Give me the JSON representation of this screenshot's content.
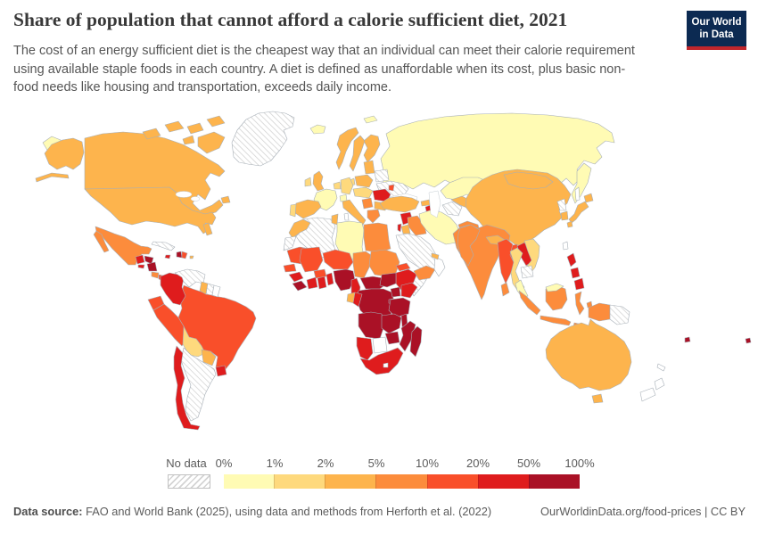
{
  "header": {
    "title": "Share of population that cannot afford a calorie sufficient diet, 2021",
    "subtitle": "The cost of an energy sufficient diet is the cheapest way that an individual can meet their calorie requirement using available staple foods in each country. A diet is defined as unaffordable when its cost, plus basic non-food needs like housing and transportation, exceeds daily income.",
    "logo": {
      "line1": "Our World",
      "line2": "in Data",
      "bg_color": "#0c2a52",
      "accent_color": "#c0262c"
    }
  },
  "footer": {
    "source_label": "Data source:",
    "source_text": " FAO and World Bank (2025), using data and methods from Herforth et al. (2022)",
    "right_text": "OurWorldinData.org/food-prices | CC BY"
  },
  "chart_data": {
    "type": "choropleth-map",
    "title": "Share of population that cannot afford a calorie sufficient diet",
    "year": "2021",
    "unit": "% of population",
    "legend": {
      "no_data_label": "No data",
      "tick_labels": [
        "0%",
        "1%",
        "2%",
        "5%",
        "10%",
        "20%",
        "50%",
        "100%"
      ],
      "bin_ranges": [
        "0-1%",
        "1-2%",
        "2-5%",
        "5-10%",
        "10-20%",
        "20-50%",
        "50-100%"
      ],
      "colors": [
        "#FFFBB4",
        "#FED97D",
        "#FDB44D",
        "#FC8C3C",
        "#F94F2A",
        "#DF1C1D",
        "#AA1126"
      ],
      "no_data_pattern": "diagonal-hatch"
    },
    "region_bins": {
      "russia": 0,
      "svalbard": 0,
      "iceland": 0,
      "kazakhstan": 0,
      "iran": 0,
      "libya": 0,
      "france": 0,
      "switzerland": 0,
      "malaysia": 0,
      "thailand": 1,
      "vietnam": 1,
      "bolivia": 1,
      "ireland": 1,
      "portugal": 1,
      "germany": 1,
      "benelux": 1,
      "denmark": 1,
      "central-europe": 1,
      "canada": 2,
      "usa": 2,
      "norway": 2,
      "sweden": 2,
      "finland": 2,
      "uk": 2,
      "spain": 2,
      "italy": 2,
      "poland": 2,
      "baltics": 2,
      "bulgaria": 2,
      "turkey": 2,
      "georgia": 2,
      "azerbaijan": 2,
      "uzbekistan": 2,
      "kyrgyzstan": 2,
      "jordan": 2,
      "uae": 2,
      "morocco": 2,
      "tunisia": 2,
      "china": 2,
      "mongolia": 2,
      "japan": 2,
      "south-korea": 2,
      "australia": 2,
      "guyana": 2,
      "paraguay": 2,
      "gabon": 2,
      "puerto-rico": 2,
      "nepal": 2,
      "mexico": 3,
      "costa-rica": 3,
      "egypt": 3,
      "chad": 3,
      "sudan": 3,
      "yemen": 3,
      "iraq": 3,
      "afghanistan": 3,
      "pakistan": 3,
      "india": 3,
      "sri-lanka": 3,
      "greece": 3,
      "balkans": 3,
      "indonesia": 3,
      "papua-indonesia": 3,
      "peru": 4,
      "ecuador": 4,
      "brazil": 4,
      "panama": 4,
      "dominican-republic": 4,
      "moldova": 4,
      "bangladesh": 4,
      "myanmar": 4,
      "mauritania": 4,
      "mali": 4,
      "niger": 4,
      "burkina-faso": 4,
      "senegal": 4,
      "eritrea": 4,
      "colombia": 5,
      "chile": 5,
      "uruguay": 5,
      "guatemala": 5,
      "el-salvador": 5,
      "jamaica": 5,
      "romania": 5,
      "syria": 5,
      "armenia": 5,
      "israel": 5,
      "ethiopia": 5,
      "kenya": 5,
      "guinea": 5,
      "ivory-coast": 5,
      "ghana": 5,
      "togo-benin": 5,
      "cameroon": 5,
      "congo": 5,
      "namibia": 5,
      "south-africa": 5,
      "laos": 5,
      "philippines": 5,
      "honduras": 6,
      "nicaragua": 6,
      "haiti": 6,
      "nigeria": 6,
      "sierra-leone-liberia": 6,
      "central-african-republic": 6,
      "south-sudan": 6,
      "drc": 6,
      "uganda": 6,
      "rwanda-burundi": 6,
      "tanzania": 6,
      "angola": 6,
      "zambia": 6,
      "malawi": 6,
      "mozambique": 6,
      "zimbabwe": 6,
      "madagascar": 6,
      "fiji": 6,
      "pacific-island": 6,
      "greenland": "no-data",
      "cuba": "no-data",
      "venezuela": "no-data",
      "suriname": "no-data",
      "argentina": "no-data",
      "algeria": "no-data",
      "western-sahara": "no-data",
      "somalia": "no-data",
      "turkmenistan": "no-data",
      "belarus": "no-data",
      "ukraine": "no-data",
      "north-korea": "no-data",
      "cambodia": "no-data",
      "saudi-arabia": "no-data",
      "papua-new-guinea": "no-data",
      "french-guiana": "none",
      "oman": "none",
      "botswana": "none",
      "lesotho": "none",
      "taiwan": "none",
      "new-zealand": "none",
      "sakhalin": "none",
      "new-caledonia": "none",
      "sardinia": "none"
    }
  }
}
